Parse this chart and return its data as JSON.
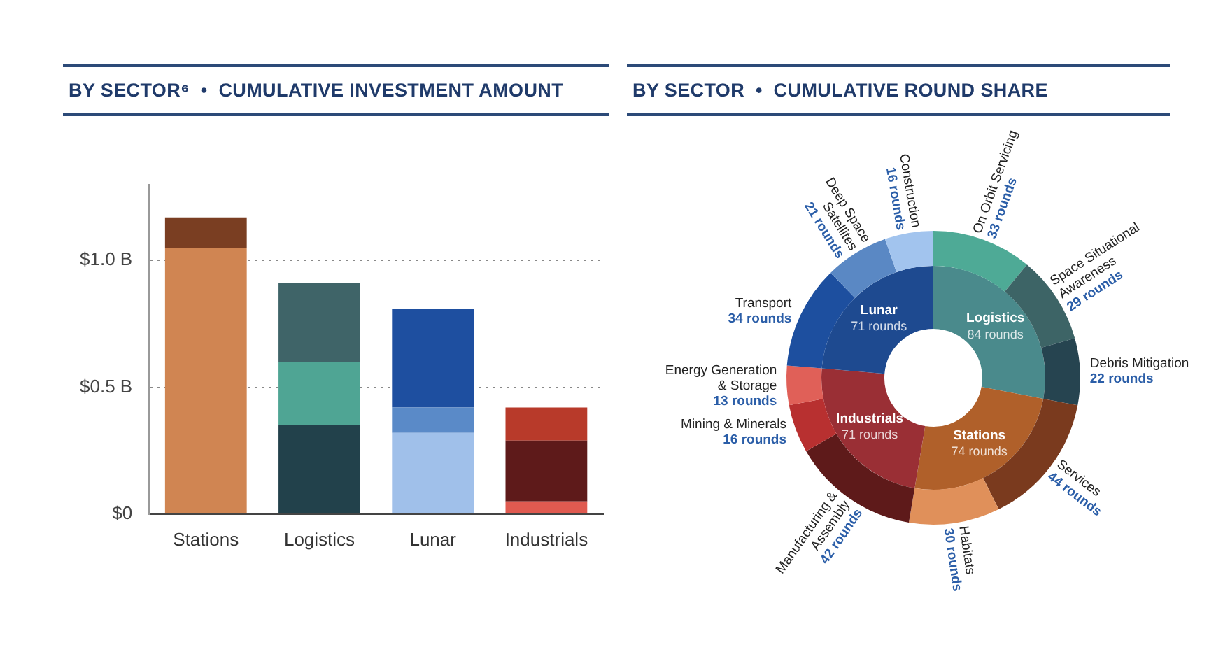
{
  "chart_data": [
    {
      "type": "bar",
      "title": "BY SECTOR⁶  •  CUMULATIVE INVESTMENT AMOUNT",
      "categories": [
        "Stations",
        "Logistics",
        "Lunar",
        "Industrials"
      ],
      "stacked": true,
      "series": [
        {
          "values": [
            1.05,
            0.35,
            0.32,
            0.05
          ],
          "colors": [
            "#d08552",
            "#22414b",
            "#a0c0ea",
            "#e05a50"
          ]
        },
        {
          "values": [
            0.12,
            0.25,
            0.1,
            0.24
          ],
          "colors": [
            "#7a3e22",
            "#4fa594",
            "#5a8ac8",
            "#5e1a1a"
          ]
        },
        {
          "values": [
            null,
            0.31,
            0.39,
            0.13
          ],
          "colors": [
            null,
            "#3f6468",
            "#1e4fa0",
            "#b83a2a"
          ]
        }
      ],
      "ylim": [
        0,
        1.3
      ],
      "yticks": [
        {
          "value": 0,
          "label": "$0"
        },
        {
          "value": 0.5,
          "label": "$0.5 B"
        },
        {
          "value": 1,
          "label": "$1.0 B"
        }
      ],
      "grid": "y",
      "legend": false
    },
    {
      "type": "donut",
      "title": "BY SECTOR  •  CUMULATIVE ROUND SHARE",
      "categories": [
        "Logistics",
        "Stations",
        "Industrials",
        "Lunar"
      ],
      "values": [
        84,
        74,
        71,
        71
      ],
      "value_labels": [
        "84 rounds",
        "74 rounds",
        "71 rounds",
        "71 rounds"
      ],
      "colors": [
        "#4a8a8c",
        "#b0602a",
        "#9a2f35",
        "#1e4a90"
      ]
    },
    {
      "type": "donut",
      "categories": [
        "On Orbit Servicing",
        "Space Situational Awareness",
        "Debris Mitigation",
        "Services",
        "Habitats",
        "Manufacturing & Assembly",
        "Mining & Minerals",
        "Energy Generation & Storage",
        "Transport",
        "Deep Space Satellites",
        "Construction"
      ],
      "values": [
        33,
        29,
        22,
        44,
        30,
        42,
        16,
        13,
        34,
        21,
        16
      ],
      "value_labels": [
        "33 rounds",
        "29 rounds",
        "22 rounds",
        "44 rounds",
        "30 rounds",
        "42 rounds",
        "16 rounds",
        "13 rounds",
        "34 rounds",
        "21 rounds",
        "16 rounds"
      ],
      "colors": [
        "#4eaa96",
        "#3d6466",
        "#264450",
        "#7a3a1e",
        "#e0905a",
        "#5e1a1a",
        "#b83030",
        "#e06058",
        "#1d4f9f",
        "#5a88c4",
        "#a2c4ee"
      ]
    }
  ]
}
